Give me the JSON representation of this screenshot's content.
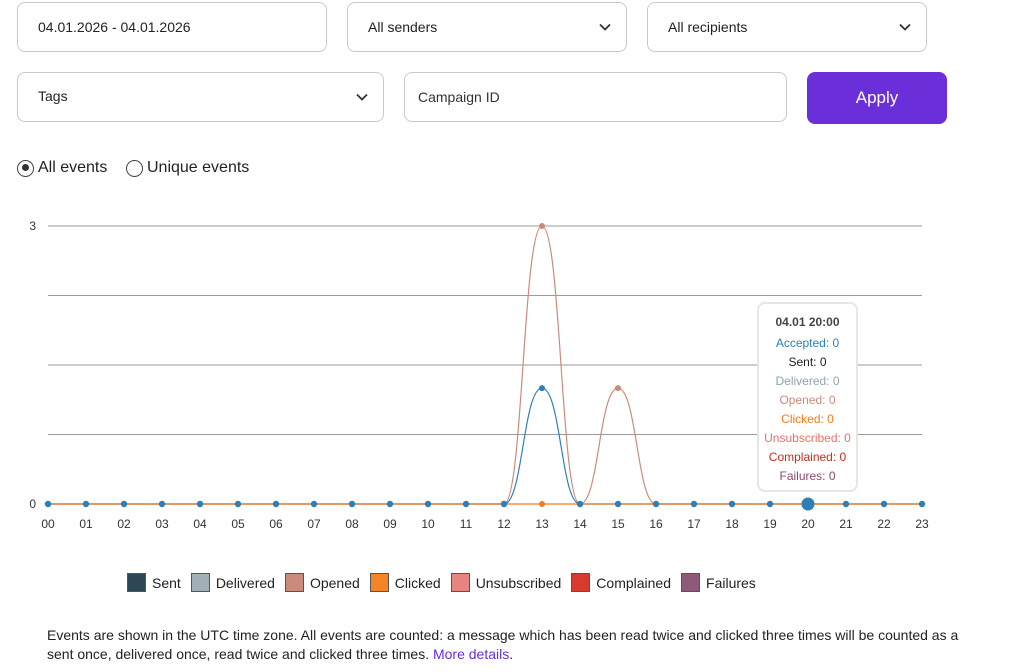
{
  "filters": {
    "date_range": "04.01.2026 - 04.01.2026",
    "senders": "All senders",
    "recipients": "All recipients",
    "tags": "Tags",
    "campaign_placeholder": "Campaign ID",
    "apply_label": "Apply"
  },
  "event_mode": {
    "all_label": "All events",
    "unique_label": "Unique events",
    "selected": "all"
  },
  "colors": {
    "accent": "#6a2fd8",
    "accepted": "#2d7fb8",
    "opened": "#c98c7b",
    "clicked": "#f07c1d"
  },
  "chart_data": {
    "type": "line",
    "x": [
      "00",
      "01",
      "02",
      "03",
      "04",
      "05",
      "06",
      "07",
      "08",
      "09",
      "10",
      "11",
      "12",
      "13",
      "14",
      "15",
      "16",
      "17",
      "18",
      "19",
      "20",
      "21",
      "22",
      "23"
    ],
    "ylim": [
      0,
      3
    ],
    "y_ticks": [
      "0",
      "3"
    ],
    "gridlines": 5,
    "series": [
      {
        "name": "Opened",
        "color": "#c98c7b",
        "values": [
          0,
          0,
          0,
          0,
          0,
          0,
          0,
          0,
          0,
          0,
          0,
          0,
          0,
          3,
          0,
          1.25,
          0,
          0,
          0,
          0,
          0,
          0,
          0,
          0
        ]
      },
      {
        "name": "Accepted",
        "color": "#2d7fb8",
        "values": [
          0,
          0,
          0,
          0,
          0,
          0,
          0,
          0,
          0,
          0,
          0,
          0,
          0,
          1.25,
          0,
          0,
          0,
          0,
          0,
          0,
          0,
          0,
          0,
          0
        ]
      },
      {
        "name": "Clicked",
        "color": "#f07c1d",
        "values": [
          0,
          0,
          0,
          0,
          0,
          0,
          0,
          0,
          0,
          0,
          0,
          0,
          0,
          0,
          0,
          0,
          0,
          0,
          0,
          0,
          0,
          0,
          0,
          0
        ]
      }
    ],
    "highlight_index": 20,
    "tooltip": {
      "title": "04.01 20:00",
      "rows": [
        {
          "label": "Accepted: 0",
          "color": "#2d7fb8"
        },
        {
          "label": "Sent: 0",
          "color": "#222222"
        },
        {
          "label": "Delivered: 0",
          "color": "#8fa3ab"
        },
        {
          "label": "Opened: 0",
          "color": "#c98c7b"
        },
        {
          "label": "Clicked: 0",
          "color": "#f07c1d"
        },
        {
          "label": "Unsubscribed: 0",
          "color": "#e0736e"
        },
        {
          "label": "Complained: 0",
          "color": "#c42f22"
        },
        {
          "label": "Failures: 0",
          "color": "#8a4a6e"
        }
      ]
    },
    "legend": [
      {
        "name": "Sent",
        "color": "#2c4856"
      },
      {
        "name": "Delivered",
        "color": "#9fb0b6"
      },
      {
        "name": "Opened",
        "color": "#c98c7b"
      },
      {
        "name": "Clicked",
        "color": "#f58426"
      },
      {
        "name": "Unsubscribed",
        "color": "#e88480"
      },
      {
        "name": "Complained",
        "color": "#d63b2e"
      },
      {
        "name": "Failures",
        "color": "#8f5a7a"
      }
    ]
  },
  "footnote": {
    "text": "Events are shown in the UTC time zone. All events are counted: a message which has been read twice and clicked three times will be counted as a sent once, delivered once, read twice and clicked three times. ",
    "link_label": "More details"
  }
}
